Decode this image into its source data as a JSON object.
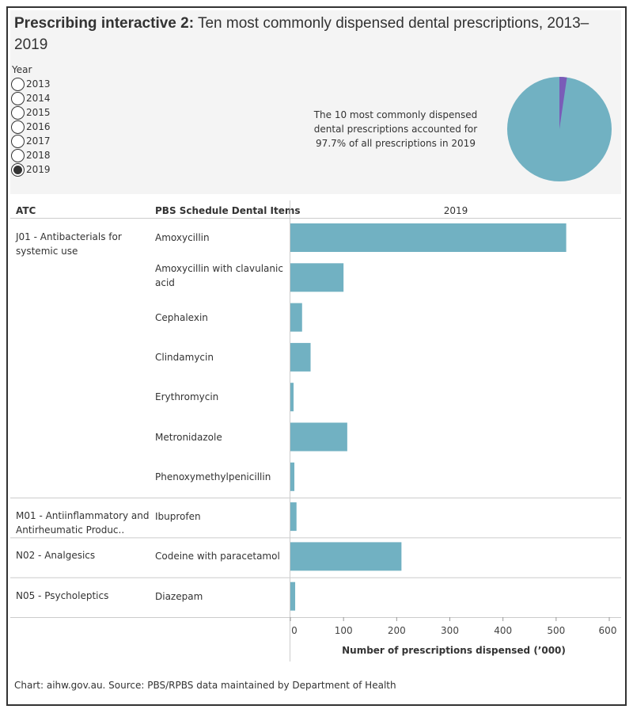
{
  "title": {
    "bold": "Prescribing interactive 2:",
    "rest": " Ten most commonly dispensed dental prescriptions, 2013–2019"
  },
  "year_filter": {
    "label": "Year",
    "options": [
      "2013",
      "2014",
      "2015",
      "2016",
      "2017",
      "2018",
      "2019"
    ],
    "selected": "2019"
  },
  "note": "The 10 most commonly dispensed dental prescriptions accounted for 97.7% of all prescriptions in 2019",
  "pie": {
    "share_top10_percent": 97.7,
    "colors": {
      "top10": "#71b1c2",
      "other": "#7a5cb8"
    }
  },
  "table": {
    "headers": {
      "atc": "ATC",
      "items": "PBS Schedule Dental Items",
      "year": "2019"
    },
    "groups": [
      {
        "atc": "J01 - Antibacterials for systemic use",
        "items": [
          "Amoxycillin",
          "Amoxycillin with clavulanic acid",
          "Cephalexin",
          "Clindamycin",
          "Erythromycin",
          "Metronidazole",
          "Phenoxymethylpenicillin"
        ]
      },
      {
        "atc": "M01 - Antiinflammatory and Antirheumatic Produc..",
        "items": [
          "Ibuprofen"
        ]
      },
      {
        "atc": "N02 - Analgesics",
        "items": [
          "Codeine with paracetamol"
        ]
      },
      {
        "atc": "N05 - Psycholeptics",
        "items": [
          "Diazepam"
        ]
      }
    ]
  },
  "chart_data": {
    "type": "bar",
    "orientation": "horizontal",
    "categories": [
      "Amoxycillin",
      "Amoxycillin with clavulanic acid",
      "Cephalexin",
      "Clindamycin",
      "Erythromycin",
      "Metronidazole",
      "Phenoxymethylpenicillin",
      "Ibuprofen",
      "Codeine with paracetamol",
      "Diazepam"
    ],
    "values": [
      519,
      100,
      22,
      38,
      6,
      107,
      7.5,
      11.5,
      209,
      9
    ],
    "xlabel": "Number of prescriptions dispensed (’000)",
    "xlim": [
      0,
      600
    ],
    "ticks": [
      "0",
      "100",
      "200",
      "300",
      "400",
      "500",
      "600"
    ],
    "color": "#71b1c2",
    "grid": false
  },
  "footer": "Chart: aihw.gov.au. Source: PBS/RPBS data maintained by Department of Health"
}
